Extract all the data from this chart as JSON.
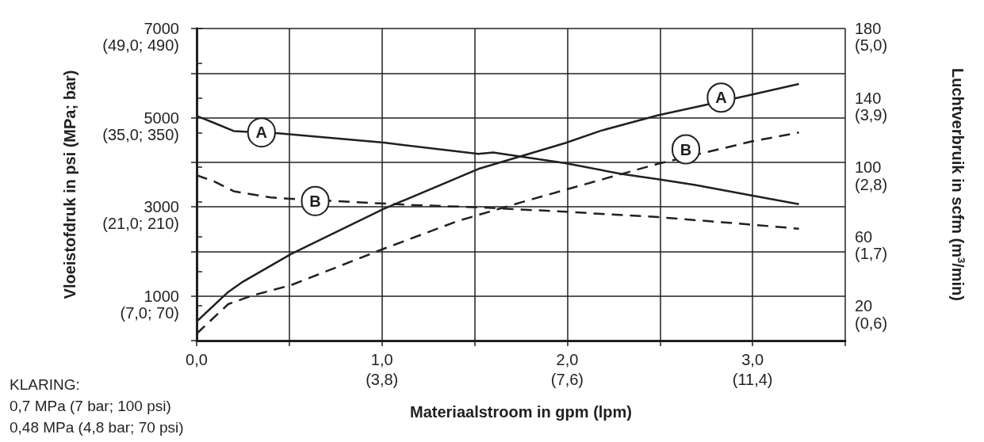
{
  "chart_data": {
    "type": "line",
    "xlabel": "Materiaalstroom in gpm (lpm)",
    "ylabel": "Vloeistofdruk in psi (MPa; bar)",
    "y2label": "Luchtverbruik in scfm (m$^{3}$/min)",
    "xlim": [
      0,
      3.5
    ],
    "xticks": [
      {
        "value": 0,
        "label": "0,0"
      },
      {
        "value": 0.5,
        "label": null
      },
      {
        "value": 1,
        "label": "1,0"
      },
      {
        "value": 1.5,
        "label": null
      },
      {
        "value": 2,
        "label": "2,0"
      },
      {
        "value": 2.5,
        "label": null
      },
      {
        "value": 3,
        "label": "3,0"
      },
      {
        "value": 3.5,
        "label": null
      }
    ],
    "x2lim": [
      0,
      13.3
    ],
    "x2ticks": [
      {
        "value": 3.8,
        "label": "(3,8)"
      },
      {
        "value": 7.6,
        "label": "(7,6)"
      },
      {
        "value": 11.4,
        "label": "(11,4)"
      }
    ],
    "ylim": [
      0,
      7000
    ],
    "yticks": [
      {
        "value": 0,
        "label": null
      },
      1000,
      {
        "value": 2000,
        "label": null
      },
      3000,
      {
        "value": 4000,
        "label": null
      },
      5000,
      {
        "value": 6000,
        "label": null
      },
      7000
    ],
    "y2lim": [
      0,
      180
    ],
    "y2ticks": [
      {
        "value": 0,
        "label": null
      },
      20,
      {
        "value": 40,
        "label": null
      },
      60,
      {
        "value": 80,
        "label": null
      },
      100,
      {
        "value": 120,
        "label": null
      },
      140,
      {
        "value": 160,
        "label": null
      },
      180
    ],
    "y3lim": [
      0.32,
      5.27
    ],
    "y3ticks": [
      {
        "value": 0.6,
        "label": "(0,6)"
      },
      {
        "value": 1.7,
        "label": "(1,7)"
      },
      {
        "value": 2.8,
        "label": "(2,8)"
      },
      {
        "value": 3.9,
        "label": "(3,9)"
      },
      {
        "value": 5.0,
        "label": "(5,0)"
      }
    ],
    "grid": true,
    "marker": "none",
    "series": [
      {
        "color": "#231f20",
        "line_style": "solid",
        "x": [
          0,
          0.09,
          0.2,
          0.34,
          0.44,
          1.01,
          1.52,
          1.6,
          1.99,
          2.29,
          2.49,
          2.69,
          3.0,
          3.25
        ],
        "values": [
          5040,
          4890,
          4700,
          4670,
          4650,
          4440,
          4190,
          4220,
          3980,
          3740,
          3620,
          3490,
          3250,
          3060
        ]
      },
      {
        "color": "#231f20",
        "line_style": "dashed",
        "x": [
          0,
          0.1,
          0.2,
          0.4,
          0.51,
          0.84,
          1.17,
          1.52,
          1.99,
          2.49,
          3.0,
          3.25
        ],
        "values": [
          3710,
          3560,
          3350,
          3210,
          3180,
          3110,
          3040,
          2990,
          2890,
          2770,
          2600,
          2510
        ]
      },
      {
        "color": "#231f20",
        "line_style": "solid",
        "axis": "y2",
        "x": [
          0,
          0.17,
          0.25,
          0.51,
          0.74,
          1.01,
          1.52,
          1.99,
          2.18,
          2.49,
          2.75,
          3.0,
          3.25
        ],
        "values": [
          11,
          28,
          34,
          50,
          62,
          76,
          99,
          114,
          121,
          130,
          136,
          142,
          148
        ]
      },
      {
        "color": "#231f20",
        "line_style": "dashed",
        "axis": "y2",
        "x": [
          0,
          0.17,
          0.3,
          0.51,
          1.01,
          1.41,
          1.76,
          1.99,
          2.29,
          2.49,
          3.0,
          3.25
        ],
        "values": [
          4,
          21,
          26,
          32,
          53,
          69,
          80,
          87,
          96,
          102,
          115,
          120
        ]
      }
    ],
    "annotations": [
      "(7,0; 70)",
      "(21,0; 210)",
      "(35,0; 350)",
      "(49,0; 490)",
      {
        "text": "A",
        "x": 0.35,
        "y": 4670
      },
      {
        "text": "B",
        "x": 0.64,
        "y": 3130
      },
      {
        "text": "A",
        "x": 2.83,
        "y": 5450
      },
      {
        "text": "B",
        "x": 2.64,
        "y": 4290
      },
      "KLARING:",
      "0,7 MPa (7 bar; 100 psi)",
      "0,48 MPa (4,8 bar; 70 psi)"
    ]
  }
}
